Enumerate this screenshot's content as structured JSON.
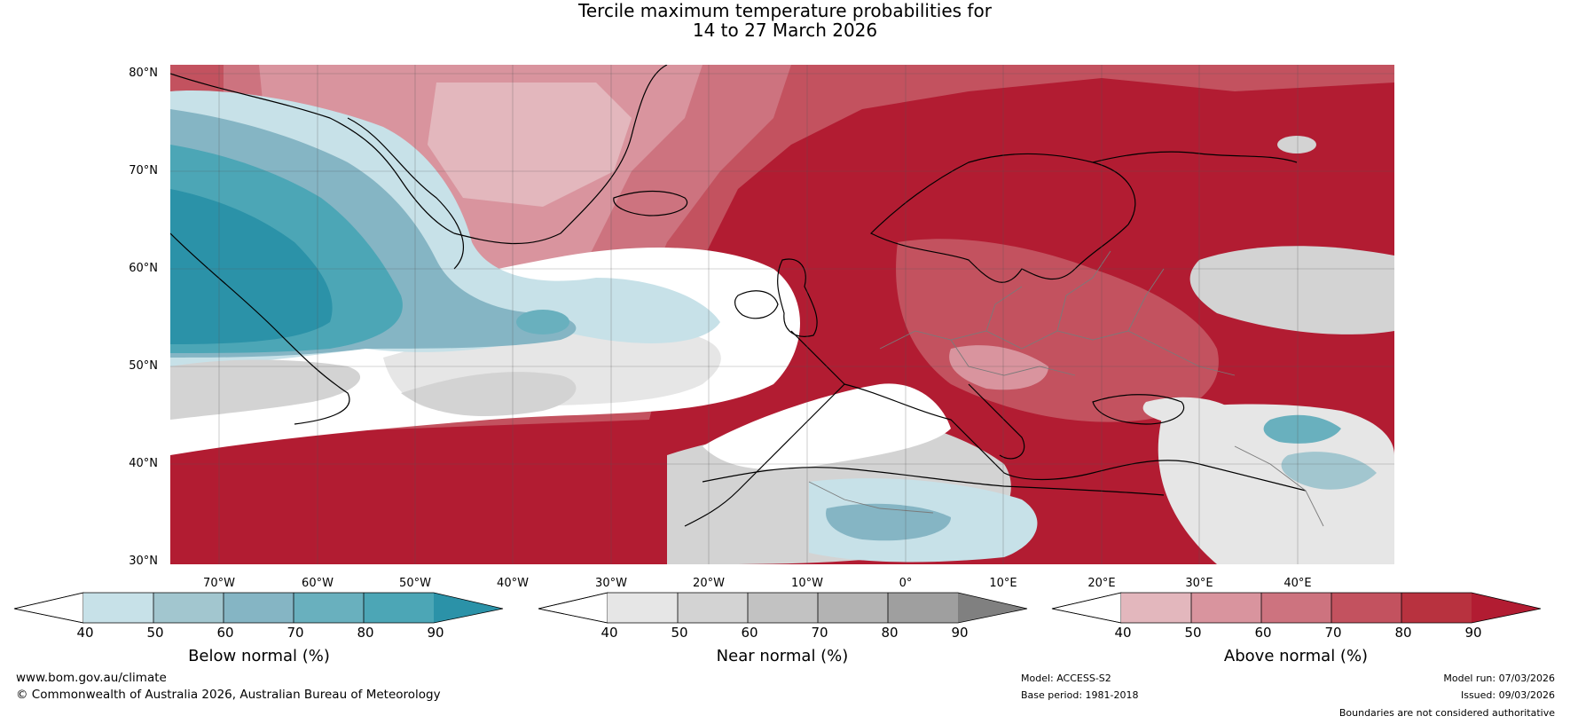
{
  "title": {
    "line1": "Tercile maximum temperature probabilities for",
    "line2": "14 to 27 March 2026"
  },
  "map": {
    "latitude_labels": [
      "80°N",
      "70°N",
      "60°N",
      "50°N",
      "40°N",
      "30°N"
    ],
    "longitude_labels": [
      "70°W",
      "60°W",
      "50°W",
      "40°W",
      "30°W",
      "20°W",
      "10°W",
      "0°",
      "10°E",
      "20°E",
      "30°E",
      "40°E"
    ]
  },
  "colorbars": [
    {
      "name": "below-normal",
      "label": "Below normal (%)",
      "ticks": [
        "40",
        "50",
        "60",
        "70",
        "80",
        "90"
      ],
      "colors": [
        "#ffffff",
        "#c7e1e8",
        "#a2c6cf",
        "#85b5c4",
        "#69b0be",
        "#4ca6b6",
        "#2b92a8"
      ]
    },
    {
      "name": "near-normal",
      "label": "Near normal (%)",
      "ticks": [
        "40",
        "50",
        "60",
        "70",
        "80",
        "90"
      ],
      "colors": [
        "#ffffff",
        "#e6e6e6",
        "#d3d3d3",
        "#c2c2c2",
        "#b3b3b3",
        "#9f9f9f",
        "#808080"
      ]
    },
    {
      "name": "above-normal",
      "label": "Above normal (%)",
      "ticks": [
        "40",
        "50",
        "60",
        "70",
        "80",
        "90"
      ],
      "colors": [
        "#ffffff",
        "#e3b7bd",
        "#d9949e",
        "#cd737f",
        "#c3525f",
        "#b8323f",
        "#b21c32"
      ]
    }
  ],
  "footer": {
    "website": "www.bom.gov.au/climate",
    "copyright": "© Commonwealth of Australia 2026, Australian Bureau of Meteorology",
    "model": "Model: ACCESS-S2",
    "base_period": "Base period: 1981-2018",
    "model_run": "Model run: 07/03/2026",
    "issued": "Issued: 09/03/2026",
    "disclaimer": "Boundaries are not considered authoritative"
  }
}
